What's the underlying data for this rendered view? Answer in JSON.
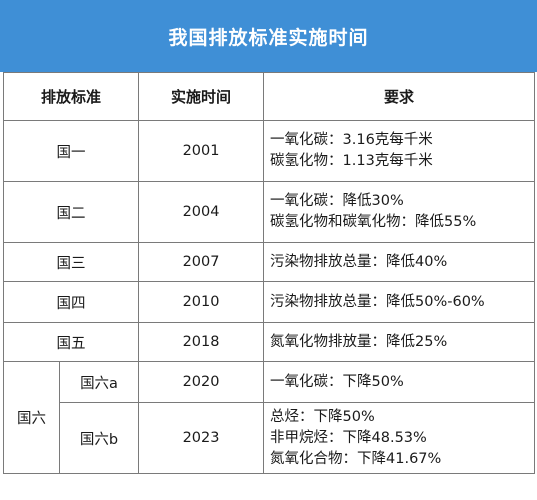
{
  "title": "我国排放标准实施时间",
  "headers": {
    "standard": "排放标准",
    "date": "实施时间",
    "requirement": "要求"
  },
  "rows": [
    {
      "standard": "国一",
      "year": "2001",
      "requirements": [
        "一氧化碳：3.16克每千米",
        "碳氢化物：1.13克每千米"
      ]
    },
    {
      "standard": "国二",
      "year": "2004",
      "requirements": [
        "一氧化碳：降低30%",
        "碳氢化物和碳氧化物：降低55%"
      ]
    },
    {
      "standard": "国三",
      "year": "2007",
      "requirements": [
        "污染物排放总量：降低40%"
      ]
    },
    {
      "standard": "国四",
      "year": "2010",
      "requirements": [
        "污染物排放总量：降低50%-60%"
      ]
    },
    {
      "standard": "国五",
      "year": "2018",
      "requirements": [
        "氮氧化物排放量：降低25%"
      ]
    }
  ],
  "guo6": {
    "label": "国六",
    "sub": [
      {
        "standard": "国六a",
        "year": "2020",
        "requirements": [
          "一氧化碳：下降50%"
        ]
      },
      {
        "standard": "国六b",
        "year": "2023",
        "requirements": [
          "总烃：下降50%",
          "非甲烷烃：下降48.53%",
          "氮氧化合物：下降41.67%"
        ]
      }
    ]
  }
}
